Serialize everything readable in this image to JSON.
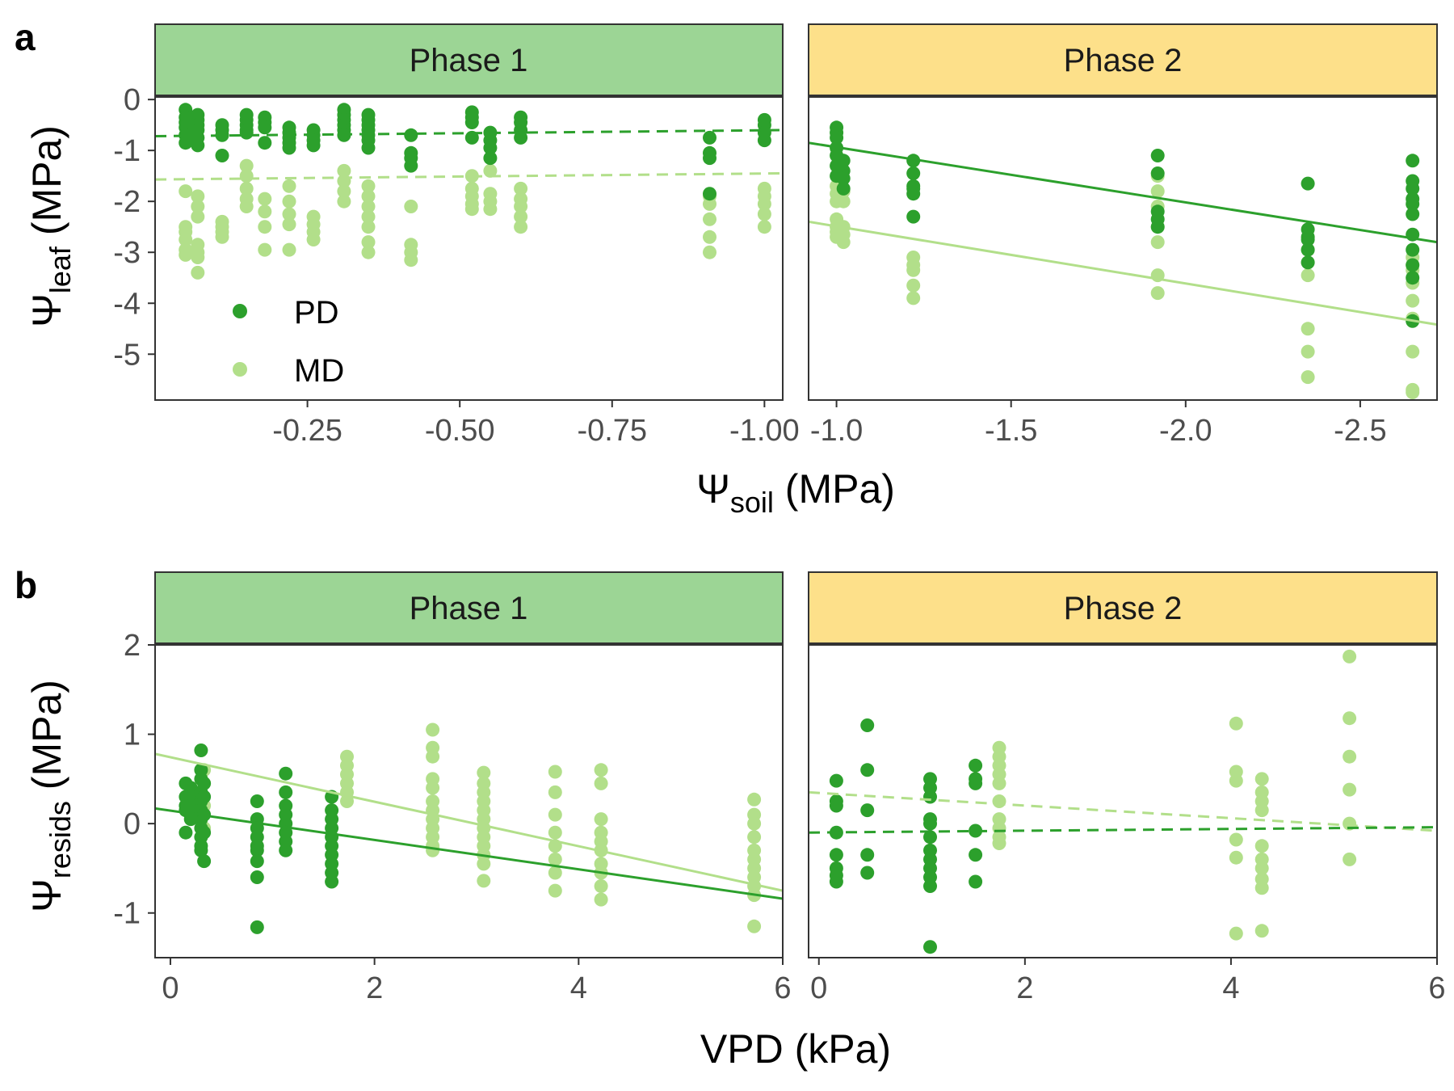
{
  "colors": {
    "PD": "#2ca02c",
    "MD": "#b2df8a",
    "strip_phase1": "#9cd595",
    "strip_phase2": "#fde08a",
    "panel_border": "#333333",
    "tick_text": "#4d4d4d"
  },
  "panel_letters": [
    "a",
    "b"
  ],
  "legend": {
    "position": "inside-bottom-left",
    "items": [
      "PD",
      "MD"
    ]
  },
  "chart_data": [
    {
      "id": "a-phase1",
      "type": "scatter",
      "strip": "Phase 1",
      "xlim": [
        0.0,
        -1.03
      ],
      "ylim": [
        -5.9,
        0.05
      ],
      "xticks": [
        -0.25,
        -0.5,
        -0.75,
        -1.0
      ],
      "xtick_labels": [
        "-0.25",
        "-0.50",
        "-0.75",
        "-1.00"
      ],
      "yticks": [
        0,
        -1,
        -2,
        -3,
        -4,
        -5
      ],
      "ytick_labels": [
        "0",
        "-1",
        "-2",
        "-3",
        "-4",
        "-5"
      ],
      "series": [
        {
          "name": "PD",
          "x": [
            -0.05,
            -0.05,
            -0.05,
            -0.05,
            -0.05,
            -0.05,
            -0.07,
            -0.07,
            -0.07,
            -0.07,
            -0.07,
            -0.07,
            -0.11,
            -0.11,
            -0.11,
            -0.11,
            -0.15,
            -0.15,
            -0.15,
            -0.15,
            -0.15,
            -0.18,
            -0.18,
            -0.18,
            -0.18,
            -0.22,
            -0.22,
            -0.22,
            -0.22,
            -0.22,
            -0.26,
            -0.26,
            -0.26,
            -0.26,
            -0.31,
            -0.31,
            -0.31,
            -0.31,
            -0.31,
            -0.31,
            -0.35,
            -0.35,
            -0.35,
            -0.35,
            -0.35,
            -0.35,
            -0.35,
            -0.42,
            -0.42,
            -0.42,
            -0.42,
            -0.52,
            -0.52,
            -0.52,
            -0.52,
            -0.55,
            -0.55,
            -0.55,
            -0.55,
            -0.6,
            -0.6,
            -0.6,
            -0.6,
            -0.91,
            -0.91,
            -0.91,
            -0.91,
            -1.0,
            -1.0,
            -1.0,
            -1.0
          ],
          "y": [
            -0.2,
            -0.35,
            -0.45,
            -0.55,
            -0.7,
            -0.85,
            -0.3,
            -0.4,
            -0.5,
            -0.6,
            -0.75,
            -0.9,
            -0.5,
            -0.6,
            -0.7,
            -1.1,
            -0.3,
            -0.4,
            -0.5,
            -0.6,
            -0.65,
            -0.35,
            -0.45,
            -0.55,
            -0.85,
            -0.55,
            -0.65,
            -0.75,
            -0.85,
            -0.95,
            -0.6,
            -0.7,
            -0.8,
            -0.9,
            -0.2,
            -0.3,
            -0.4,
            -0.5,
            -0.6,
            -0.7,
            -0.3,
            -0.4,
            -0.5,
            -0.6,
            -0.7,
            -0.8,
            -0.95,
            -0.7,
            -1.05,
            -1.15,
            -1.3,
            -0.25,
            -0.35,
            -0.45,
            -0.75,
            -0.65,
            -0.8,
            -0.95,
            -1.15,
            -0.35,
            -0.45,
            -0.6,
            -0.75,
            -0.75,
            -1.05,
            -1.15,
            -1.85,
            -0.4,
            -0.5,
            -0.65,
            -0.8
          ],
          "fit": {
            "x": [
              0.0,
              -1.03
            ],
            "y": [
              -0.72,
              -0.6
            ],
            "linestyle": "dashed"
          }
        },
        {
          "name": "MD",
          "x": [
            -0.05,
            -0.05,
            -0.05,
            -0.05,
            -0.05,
            -0.05,
            -0.07,
            -0.07,
            -0.07,
            -0.07,
            -0.07,
            -0.07,
            -0.07,
            -0.11,
            -0.11,
            -0.11,
            -0.11,
            -0.15,
            -0.15,
            -0.15,
            -0.15,
            -0.15,
            -0.18,
            -0.18,
            -0.18,
            -0.18,
            -0.22,
            -0.22,
            -0.22,
            -0.22,
            -0.22,
            -0.26,
            -0.26,
            -0.26,
            -0.26,
            -0.31,
            -0.31,
            -0.31,
            -0.31,
            -0.35,
            -0.35,
            -0.35,
            -0.35,
            -0.35,
            -0.35,
            -0.35,
            -0.42,
            -0.42,
            -0.42,
            -0.42,
            -0.52,
            -0.52,
            -0.52,
            -0.52,
            -0.52,
            -0.55,
            -0.55,
            -0.55,
            -0.55,
            -0.6,
            -0.6,
            -0.6,
            -0.6,
            -0.6,
            -0.91,
            -0.91,
            -0.91,
            -0.91,
            -0.91,
            -1.0,
            -1.0,
            -1.0,
            -1.0,
            -1.0
          ],
          "y": [
            -1.8,
            -2.5,
            -2.6,
            -2.75,
            -2.95,
            -3.05,
            -1.9,
            -2.1,
            -2.3,
            -2.85,
            -3.0,
            -3.1,
            -3.4,
            -2.4,
            -2.5,
            -2.6,
            -2.7,
            -1.3,
            -1.5,
            -1.75,
            -1.95,
            -2.1,
            -1.95,
            -2.2,
            -2.5,
            -2.95,
            -1.7,
            -2.0,
            -2.25,
            -2.45,
            -2.95,
            -2.3,
            -2.45,
            -2.6,
            -2.75,
            -1.4,
            -1.6,
            -1.8,
            -2.0,
            -1.7,
            -1.9,
            -2.1,
            -2.3,
            -2.5,
            -2.8,
            -3.0,
            -2.1,
            -2.85,
            -3.0,
            -3.15,
            -1.5,
            -1.75,
            -1.9,
            -2.05,
            -2.15,
            -1.4,
            -1.85,
            -2.0,
            -2.15,
            -1.75,
            -1.95,
            -2.1,
            -2.3,
            -2.5,
            -1.9,
            -2.05,
            -2.35,
            -2.7,
            -3.0,
            -1.75,
            -1.9,
            -2.05,
            -2.25,
            -2.5
          ],
          "fit": {
            "x": [
              0.0,
              -1.03
            ],
            "y": [
              -1.57,
              -1.45
            ],
            "linestyle": "dashed"
          }
        }
      ]
    },
    {
      "id": "a-phase2",
      "type": "scatter",
      "strip": "Phase 2",
      "xlim": [
        -0.92,
        -2.72
      ],
      "ylim": [
        -5.9,
        0.05
      ],
      "xticks": [
        -1.0,
        -1.5,
        -2.0,
        -2.5
      ],
      "xtick_labels": [
        "-1.0",
        "-1.5",
        "-2.0",
        "-2.5"
      ],
      "series": [
        {
          "name": "PD",
          "x": [
            -1.0,
            -1.0,
            -1.0,
            -1.0,
            -1.0,
            -1.0,
            -1.0,
            -1.02,
            -1.02,
            -1.02,
            -1.02,
            -1.22,
            -1.22,
            -1.22,
            -1.22,
            -1.22,
            -1.22,
            -1.92,
            -1.92,
            -1.92,
            -1.92,
            -1.92,
            -2.35,
            -2.35,
            -2.35,
            -2.35,
            -2.35,
            -2.35,
            -2.65,
            -2.65,
            -2.65,
            -2.65,
            -2.65,
            -2.65,
            -2.65,
            -2.65,
            -2.65,
            -2.65,
            -2.65
          ],
          "y": [
            -0.55,
            -0.65,
            -0.75,
            -0.95,
            -1.1,
            -1.3,
            -1.5,
            -1.2,
            -1.4,
            -1.55,
            -1.75,
            -1.2,
            -1.45,
            -1.7,
            -1.75,
            -1.85,
            -2.3,
            -1.1,
            -1.45,
            -2.2,
            -2.35,
            -2.5,
            -1.65,
            -2.55,
            -2.7,
            -2.75,
            -2.95,
            -3.2,
            -1.2,
            -1.6,
            -1.75,
            -1.95,
            -2.05,
            -2.25,
            -2.65,
            -2.95,
            -3.25,
            -3.5,
            -4.35
          ],
          "fit": {
            "x": [
              -0.92,
              -2.72
            ],
            "y": [
              -0.85,
              -2.8
            ],
            "linestyle": "solid"
          }
        },
        {
          "name": "MD",
          "x": [
            -1.0,
            -1.0,
            -1.0,
            -1.0,
            -1.0,
            -1.0,
            -1.0,
            -1.02,
            -1.02,
            -1.02,
            -1.02,
            -1.02,
            -1.22,
            -1.22,
            -1.22,
            -1.22,
            -1.22,
            -1.92,
            -1.92,
            -1.92,
            -1.92,
            -1.92,
            -1.92,
            -1.92,
            -2.35,
            -2.35,
            -2.35,
            -2.35,
            -2.35,
            -2.35,
            -2.65,
            -2.65,
            -2.65,
            -2.65,
            -2.65,
            -2.65,
            -2.65,
            -2.65,
            -2.65
          ],
          "y": [
            -1.7,
            -1.85,
            -2.0,
            -2.35,
            -2.5,
            -2.6,
            -2.7,
            -1.8,
            -2.0,
            -2.5,
            -2.65,
            -2.8,
            -3.1,
            -3.25,
            -3.35,
            -3.65,
            -3.9,
            -1.5,
            -1.8,
            -2.1,
            -2.5,
            -2.8,
            -3.45,
            -3.8,
            -2.95,
            -3.2,
            -3.45,
            -4.5,
            -4.95,
            -5.45,
            -3.1,
            -3.25,
            -3.35,
            -3.6,
            -3.95,
            -4.3,
            -4.95,
            -5.7,
            -5.75
          ],
          "fit": {
            "x": [
              -0.92,
              -2.72
            ],
            "y": [
              -2.4,
              -4.42
            ],
            "linestyle": "solid"
          }
        }
      ]
    },
    {
      "id": "b-phase1",
      "type": "scatter",
      "strip": "Phase 1",
      "xlim": [
        -0.15,
        6.0
      ],
      "ylim": [
        -1.5,
        2.0
      ],
      "xticks": [
        0,
        2,
        4,
        6
      ],
      "xtick_labels": [
        "0",
        "2",
        "4",
        "6"
      ],
      "yticks": [
        2,
        1,
        0,
        -1
      ],
      "ytick_labels": [
        "2",
        "1",
        "0",
        "-1"
      ],
      "series": [
        {
          "name": "PD",
          "x": [
            0.15,
            0.15,
            0.15,
            0.15,
            0.15,
            0.2,
            0.2,
            0.2,
            0.2,
            0.2,
            0.3,
            0.3,
            0.3,
            0.3,
            0.3,
            0.3,
            0.3,
            0.3,
            0.3,
            0.3,
            0.3,
            0.33,
            0.33,
            0.33,
            0.33,
            0.33,
            0.85,
            0.85,
            0.85,
            0.85,
            0.85,
            0.85,
            0.85,
            0.85,
            0.85,
            1.13,
            1.13,
            1.13,
            1.13,
            1.13,
            1.13,
            1.13,
            1.13,
            1.58,
            1.58,
            1.58,
            1.58,
            1.58,
            1.58,
            1.58,
            1.58,
            1.58,
            1.58
          ],
          "x_note": "",
          "y": [
            0.45,
            0.3,
            0.2,
            0.15,
            -0.1,
            0.4,
            0.3,
            0.2,
            0.1,
            0.05,
            0.82,
            0.6,
            0.5,
            0.35,
            0.25,
            0.15,
            0.05,
            -0.05,
            -0.15,
            -0.25,
            -0.3,
            0.45,
            0.3,
            0.1,
            -0.1,
            -0.42,
            0.25,
            0.05,
            -0.05,
            -0.15,
            -0.25,
            -0.3,
            -0.42,
            -0.6,
            -1.16,
            0.56,
            0.35,
            0.2,
            0.1,
            0.0,
            -0.1,
            -0.2,
            -0.3,
            0.3,
            0.15,
            0.05,
            -0.05,
            -0.15,
            -0.25,
            -0.35,
            -0.45,
            -0.55,
            -0.65
          ],
          "fit": {
            "x": [
              -0.15,
              6.0
            ],
            "y": [
              0.17,
              -0.84
            ],
            "linestyle": "solid"
          }
        },
        {
          "name": "MD",
          "x": [
            0.33,
            0.33,
            0.33,
            0.33,
            1.73,
            1.73,
            1.73,
            1.73,
            1.73,
            1.73,
            2.57,
            2.57,
            2.57,
            2.57,
            2.57,
            2.57,
            2.57,
            2.57,
            2.57,
            2.57,
            2.57,
            2.57,
            3.07,
            3.07,
            3.07,
            3.07,
            3.07,
            3.07,
            3.07,
            3.07,
            3.07,
            3.07,
            3.07,
            3.07,
            3.77,
            3.77,
            3.77,
            3.77,
            3.77,
            3.77,
            3.77,
            3.77,
            4.22,
            4.22,
            4.22,
            4.22,
            4.22,
            4.22,
            4.22,
            4.22,
            4.22,
            4.22,
            5.72,
            5.72,
            5.72,
            5.72,
            5.72,
            5.72,
            5.72,
            5.72,
            5.72,
            5.72,
            5.72
          ],
          "y": [
            0.6,
            0.45,
            0.2,
            -0.05,
            0.75,
            0.65,
            0.55,
            0.45,
            0.35,
            0.25,
            1.05,
            0.85,
            0.75,
            0.5,
            0.4,
            0.25,
            0.15,
            0.05,
            -0.05,
            -0.15,
            -0.25,
            -0.3,
            0.57,
            0.45,
            0.35,
            0.25,
            0.15,
            0.05,
            -0.05,
            -0.15,
            -0.25,
            -0.35,
            -0.45,
            -0.64,
            0.58,
            0.35,
            0.1,
            -0.1,
            -0.25,
            -0.4,
            -0.55,
            -0.75,
            0.6,
            0.45,
            0.05,
            -0.1,
            -0.2,
            -0.3,
            -0.45,
            -0.55,
            -0.7,
            -0.85,
            0.27,
            0.1,
            0.0,
            -0.15,
            -0.3,
            -0.4,
            -0.5,
            -0.6,
            -0.7,
            -0.8,
            -1.15
          ],
          "fit": {
            "x": [
              -0.15,
              6.0
            ],
            "y": [
              0.78,
              -0.75
            ],
            "linestyle": "solid"
          }
        }
      ]
    },
    {
      "id": "b-phase2",
      "type": "scatter",
      "strip": "Phase 2",
      "xlim": [
        -0.1,
        6.0
      ],
      "ylim": [
        -1.5,
        2.0
      ],
      "xticks": [
        0,
        2,
        4,
        6
      ],
      "xtick_labels": [
        "0",
        "2",
        "4",
        "6"
      ],
      "series": [
        {
          "name": "PD",
          "x": [
            0.17,
            0.17,
            0.17,
            0.17,
            0.17,
            0.17,
            0.17,
            0.17,
            0.47,
            0.47,
            0.47,
            0.47,
            0.47,
            1.08,
            1.08,
            1.08,
            1.08,
            1.08,
            1.08,
            1.08,
            1.08,
            1.08,
            1.08,
            1.08,
            1.08,
            1.52,
            1.52,
            1.52,
            1.52,
            1.52,
            1.52
          ],
          "y": [
            0.48,
            0.25,
            0.2,
            -0.1,
            -0.35,
            -0.5,
            -0.58,
            -0.65,
            1.1,
            0.6,
            0.15,
            -0.35,
            -0.55,
            0.5,
            0.4,
            0.3,
            0.05,
            -0.15,
            -0.3,
            -0.4,
            -0.5,
            -0.6,
            -0.7,
            -1.38,
            0.0,
            0.65,
            0.5,
            0.45,
            -0.08,
            -0.35,
            -0.65
          ],
          "fit": {
            "x": [
              -0.1,
              6.0
            ],
            "y": [
              -0.1,
              -0.04
            ],
            "linestyle": "dashed"
          }
        },
        {
          "name": "MD",
          "x": [
            1.75,
            1.75,
            1.75,
            1.75,
            1.75,
            1.75,
            1.75,
            1.75,
            1.75,
            1.75,
            4.05,
            4.05,
            4.05,
            4.05,
            4.05,
            4.05,
            4.3,
            4.3,
            4.3,
            4.3,
            4.3,
            4.3,
            4.3,
            4.3,
            4.3,
            4.3,
            5.15,
            5.15,
            5.15,
            5.15,
            5.15,
            5.15
          ],
          "y": [
            0.85,
            0.75,
            0.65,
            0.55,
            0.45,
            0.25,
            0.05,
            -0.05,
            -0.15,
            -0.22,
            1.12,
            0.58,
            0.48,
            -0.18,
            -0.38,
            -1.23,
            0.5,
            0.35,
            0.25,
            0.15,
            -0.25,
            -0.4,
            -0.5,
            -0.62,
            -0.72,
            -1.2,
            1.87,
            1.18,
            0.75,
            0.38,
            0.0,
            -0.4
          ],
          "fit": {
            "x": [
              -0.1,
              6.0
            ],
            "y": [
              0.35,
              -0.08
            ],
            "linestyle": "dashed"
          }
        }
      ]
    }
  ]
}
